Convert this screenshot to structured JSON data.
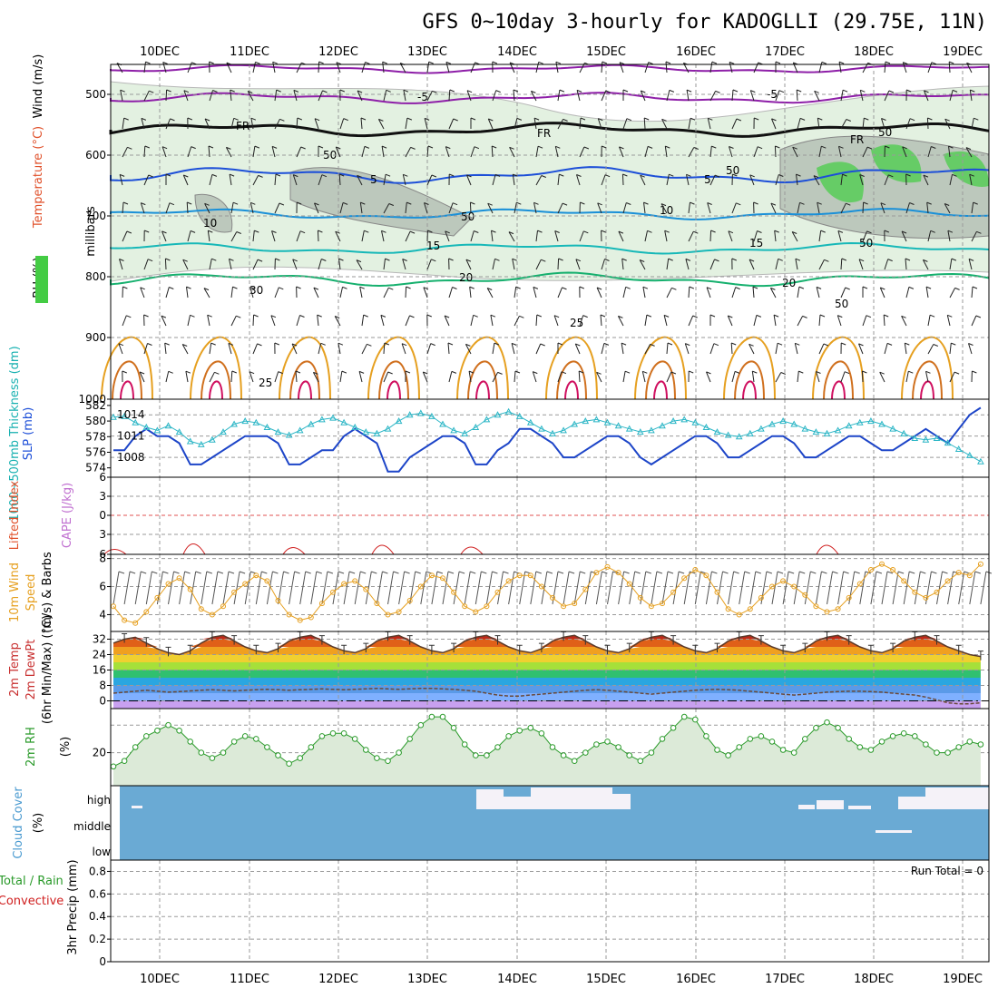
{
  "title": "GFS 0~10day 3-hourly for KADOGLLI (29.75E, 11N)",
  "dates": [
    "10DEC",
    "11DEC",
    "12DEC",
    "13DEC",
    "14DEC",
    "15DEC",
    "16DEC",
    "17DEC",
    "18DEC",
    "19DEC"
  ],
  "panels": {
    "upper": {
      "ylabel_wind": "Wind (m/s)",
      "ylabel_temp": "Temperature (°C)",
      "ylabel_rh": "RH (%)",
      "ylabel_pressure": "millibars",
      "pressure_ticks": [
        "500",
        "600",
        "700",
        "800",
        "900",
        "1000"
      ],
      "isotherm_labels": [
        "-5",
        "-5",
        "FR",
        "FR",
        "FR",
        "5",
        "5",
        "10",
        "10",
        "15",
        "15",
        "20",
        "20",
        "25",
        "25",
        "50",
        "50",
        "50",
        "50",
        "30",
        "50",
        "50"
      ]
    },
    "slp": {
      "ylabel_slp": "SLP (mb)",
      "ylabel_thick": "1000~500mb Thickness (dm)",
      "left_ticks": [
        "582",
        "580",
        "578",
        "576",
        "574"
      ],
      "right_ticks": [
        "1014",
        "1011",
        "1008"
      ]
    },
    "li": {
      "ylabel_li": "Lifted Index",
      "ylabel_cape": "CAPE (J/kg)",
      "ticks": [
        "6",
        "3",
        "0",
        "3",
        "6"
      ]
    },
    "wind10": {
      "ylabel_a": "10m Wind",
      "ylabel_b": "Speed",
      "ylabel_c": "(m/s) & Barbs",
      "ticks": [
        "8",
        "6",
        "4"
      ]
    },
    "temp2m": {
      "ylabel_a": "2m Temp",
      "ylabel_b": "2m DewPt",
      "ylabel_c": "(6hr Min/Max) (°C)",
      "ticks": [
        "32",
        "24",
        "16",
        "8",
        "0"
      ]
    },
    "rh2m": {
      "ylabel_a": "2m RH",
      "ylabel_b": "(%)",
      "ticks": [
        "20"
      ]
    },
    "cloud": {
      "ylabel_a": "Cloud Cover",
      "ylabel_b": "(%)",
      "levels": [
        "high",
        "middle",
        "low"
      ],
      "color": "#6aaad4"
    },
    "precip": {
      "ylabel_a": "Total / Rain",
      "ylabel_b": "Convective",
      "ylabel_c": "3hr Precip (mm)",
      "ticks": [
        "0.8",
        "0.6",
        "0.4",
        "0.2",
        "0"
      ],
      "run_total": "Run Total = 0"
    }
  },
  "chart_data": [
    {
      "type": "line",
      "panel": "2m RH (%)",
      "x_unit": "3-hour steps from 9 Dec 12Z",
      "x": [
        0,
        1,
        2,
        3,
        4,
        5,
        6,
        7,
        8,
        9,
        10,
        11,
        12,
        13,
        14,
        15,
        16,
        17,
        18,
        19,
        20,
        21,
        22,
        23,
        24,
        25,
        26,
        27,
        28,
        29,
        30,
        31,
        32,
        33,
        34,
        35,
        36,
        37,
        38,
        39,
        40,
        41,
        42,
        43,
        44,
        45,
        46,
        47,
        48,
        49,
        50,
        51,
        52,
        53,
        54,
        55,
        56,
        57,
        58,
        59,
        60,
        61,
        62,
        63,
        64,
        65,
        66,
        67,
        68,
        69,
        70,
        71,
        72,
        73,
        74,
        75,
        76,
        77,
        78,
        79
      ],
      "series": [
        {
          "values": [
            15,
            17,
            22,
            26,
            28,
            30,
            28,
            24,
            20,
            18,
            20,
            24,
            26,
            25,
            22,
            19,
            16,
            18,
            22,
            26,
            27,
            27,
            25,
            21,
            18,
            17,
            20,
            25,
            30,
            33,
            33,
            29,
            23,
            19,
            19,
            22,
            26,
            28,
            29,
            27,
            22,
            19,
            17,
            20,
            23,
            24,
            22,
            19,
            17,
            20,
            25,
            29,
            33,
            32,
            26,
            21,
            19,
            22,
            25,
            26,
            24,
            21,
            20,
            25,
            29,
            31,
            29,
            25,
            22,
            21,
            24,
            26,
            27,
            26,
            23,
            20,
            20,
            22,
            24,
            23
          ]
        }
      ]
    },
    {
      "type": "line",
      "panel": "10m Wind Speed (m/s)",
      "x_unit": "3-hour steps from 9 Dec 12Z",
      "ylim": [
        2.8,
        8.3
      ],
      "series": [
        {
          "values": [
            4.6,
            3.6,
            3.4,
            4.2,
            5.2,
            6.2,
            6.6,
            5.8,
            4.4,
            4.0,
            4.6,
            5.6,
            6.2,
            6.8,
            6.4,
            5.0,
            4.0,
            3.6,
            3.8,
            4.8,
            5.6,
            6.2,
            6.4,
            5.8,
            4.8,
            4.0,
            4.2,
            5.0,
            6.0,
            6.8,
            6.6,
            5.6,
            4.6,
            4.2,
            4.6,
            5.6,
            6.4,
            6.8,
            6.8,
            6.0,
            5.2,
            4.6,
            4.8,
            5.8,
            7.0,
            7.4,
            7.0,
            6.2,
            5.2,
            4.6,
            4.8,
            5.6,
            6.6,
            7.2,
            6.8,
            5.6,
            4.4,
            4.0,
            4.4,
            5.2,
            6.0,
            6.4,
            6.0,
            5.4,
            4.6,
            4.2,
            4.4,
            5.2,
            6.2,
            7.2,
            7.6,
            7.2,
            6.4,
            5.6,
            5.2,
            5.6,
            6.4,
            7.0,
            6.8,
            7.6
          ]
        }
      ]
    },
    {
      "type": "line",
      "panel": "SLP (mb) and 1000~500mb Thickness (dm)",
      "x_unit": "3-hour steps from 9 Dec 12Z",
      "series": [
        {
          "values": [
            1009,
            1009,
            1011,
            1012,
            1011,
            1011,
            1010,
            1007,
            1007,
            1008,
            1009,
            1010,
            1011,
            1011,
            1011,
            1010,
            1007,
            1007,
            1008,
            1009,
            1009,
            1011,
            1012,
            1011,
            1010,
            1006,
            1006,
            1008,
            1009,
            1010,
            1011,
            1011,
            1010,
            1007,
            1007,
            1009,
            1010,
            1012,
            1012,
            1011,
            1010,
            1008,
            1008,
            1009,
            1010,
            1011,
            1011,
            1010,
            1008,
            1007,
            1008,
            1009,
            1010,
            1011,
            1011,
            1010,
            1008,
            1008,
            1009,
            1010,
            1011,
            1011,
            1010,
            1008,
            1008,
            1009,
            1010,
            1011,
            1011,
            1010,
            1009,
            1009,
            1010,
            1011,
            1012,
            1011,
            1010,
            1012,
            1014,
            1015
          ]
        },
        {
          "values": [
            580.5,
            580.6,
            579.8,
            579.2,
            578.8,
            579.4,
            578.6,
            577.4,
            577.0,
            577.6,
            578.6,
            579.6,
            580.0,
            579.8,
            579.2,
            578.6,
            578.2,
            578.8,
            579.6,
            580.2,
            580.4,
            579.8,
            579.2,
            578.6,
            578.4,
            579.0,
            580.0,
            580.8,
            581.0,
            580.6,
            579.6,
            578.8,
            578.4,
            579.2,
            580.2,
            580.8,
            581.2,
            580.6,
            579.8,
            579.0,
            578.4,
            578.8,
            579.6,
            580.0,
            580.2,
            579.8,
            579.4,
            579.0,
            578.6,
            578.8,
            579.4,
            580.0,
            580.2,
            579.8,
            579.2,
            578.6,
            578.2,
            578.0,
            578.4,
            579.0,
            579.6,
            580.0,
            579.6,
            579.0,
            578.6,
            578.4,
            578.8,
            579.4,
            579.8,
            580.0,
            579.6,
            579.0,
            578.4,
            577.8,
            577.6,
            577.8,
            577.2,
            576.4,
            575.6,
            574.8
          ]
        }
      ]
    },
    {
      "type": "area",
      "panel": "2m Temp / 2m DewPt (°C)",
      "ylim": [
        -4,
        36
      ],
      "series": [
        {
          "values": [
            30,
            32,
            33,
            30,
            27,
            25,
            24,
            26,
            30,
            33,
            34,
            31,
            28,
            26,
            25,
            27,
            31,
            33,
            34,
            31,
            28,
            26,
            25,
            27,
            31,
            33,
            34,
            31,
            28,
            26,
            25,
            27,
            31,
            33,
            34,
            31,
            28,
            26,
            25,
            27,
            31,
            33,
            34,
            31,
            28,
            26,
            25,
            27,
            31,
            33,
            34,
            31,
            28,
            26,
            25,
            27,
            31,
            33,
            34,
            31,
            28,
            26,
            25,
            27,
            31,
            33,
            34,
            31,
            28,
            26,
            25,
            27,
            31,
            33,
            34,
            31,
            28,
            26,
            24,
            23
          ]
        },
        {
          "values": [
            4,
            4.5,
            5,
            5.5,
            5,
            4.5,
            4.8,
            5.2,
            5.5,
            5.8,
            5.5,
            5.2,
            5.5,
            5.8,
            6,
            5.8,
            5.5,
            5.8,
            6,
            6.2,
            6,
            5.8,
            6,
            6.2,
            6.5,
            6.2,
            6,
            6.2,
            6.5,
            6.5,
            6.2,
            6,
            5.5,
            5,
            4,
            3,
            2.5,
            2.5,
            3,
            3.5,
            4,
            4.5,
            5,
            5.5,
            5.8,
            5.5,
            5,
            4.5,
            4,
            3.5,
            4,
            4.5,
            5,
            5.5,
            5.8,
            6,
            5.8,
            5.5,
            5,
            4.5,
            4,
            3.5,
            3,
            3.5,
            4,
            4.5,
            4.8,
            5,
            5,
            4.8,
            4.5,
            4,
            3.5,
            3,
            2,
            0.5,
            -1,
            -1.5,
            -1.5,
            -1
          ]
        }
      ]
    },
    {
      "type": "bar",
      "panel": "Cloud Cover (%)",
      "series": [
        {
          "name": "high",
          "values": [
            0,
            20,
            0,
            0,
            0,
            0,
            0,
            0,
            0,
            0,
            0,
            0,
            0,
            0,
            0,
            0,
            0,
            0,
            0,
            0,
            0,
            0,
            0,
            0,
            0,
            0,
            0,
            0,
            0,
            0,
            0,
            0,
            0,
            0,
            0,
            0,
            0,
            0,
            0,
            0,
            0,
            0,
            0,
            0,
            0,
            0,
            0,
            0,
            0,
            0,
            0,
            0,
            0,
            0,
            0,
            0,
            0,
            0,
            0,
            0,
            0,
            0,
            0,
            0,
            0,
            0,
            0,
            0,
            0,
            0,
            0,
            0,
            0,
            0,
            0,
            0,
            0,
            0,
            0,
            0
          ]
        }
      ]
    },
    {
      "type": "bar",
      "panel": "3hr Precip (mm)",
      "ylim": [
        0,
        0.9
      ],
      "series": [
        {
          "values": []
        }
      ]
    }
  ]
}
